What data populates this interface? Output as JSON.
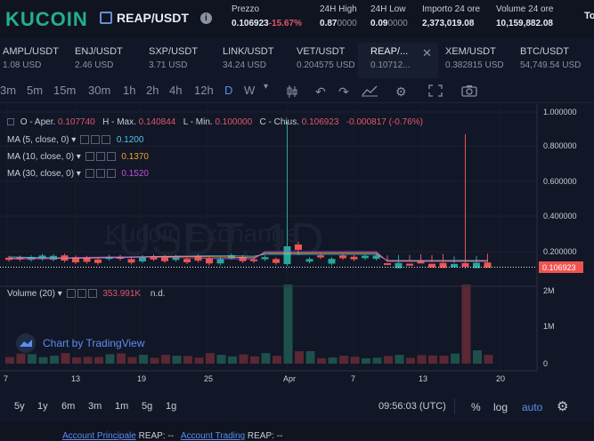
{
  "header": {
    "logo": "KUCOIN",
    "pair": "REAP/USDT",
    "price_label": "Prezzo",
    "price": "0.106923",
    "price_change": "-15.67%",
    "high_label": "24H High",
    "high": "0.87",
    "high_suffix": "0000",
    "low_label": "24H Low",
    "low": "0.09",
    "low_suffix": "0000",
    "amount_label": "Importo 24 ore",
    "amount": "2,373,019.08",
    "volume_label": "Volume 24 ore",
    "volume": "10,159,882.08",
    "extra": "To"
  },
  "tickers": [
    {
      "name": "AMPL/USDT",
      "price": "1.08 USD"
    },
    {
      "name": "ENJ/USDT",
      "price": "2.46 USD"
    },
    {
      "name": "SXP/USDT",
      "price": "3.71 USD"
    },
    {
      "name": "LINK/USDT",
      "price": "34.24 USD"
    },
    {
      "name": "VET/USDT",
      "price": "0.204575 USD"
    },
    {
      "name": "REAP/...",
      "price": "0.10712..."
    },
    {
      "name": "XEM/USDT",
      "price": "0.382815 USD"
    },
    {
      "name": "BTC/USDT",
      "price": "54,749.54 USD"
    }
  ],
  "toolbar": {
    "timeframes": [
      "3m",
      "5m",
      "15m",
      "30m",
      "1h",
      "2h",
      "4h",
      "12h",
      "D",
      "W"
    ],
    "selected": "D"
  },
  "legend": {
    "ohlc": {
      "open_label": "O - Aper.",
      "open": "0.107740",
      "high_label": "H - Max.",
      "high": "0.140844",
      "low_label": "L - Min.",
      "low": "0.100000",
      "close_label": "C - Chius.",
      "close": "0.106923",
      "change": "-0.000817 (-0.76%)"
    },
    "ma": [
      {
        "label": "MA (5, close, 0)",
        "value": "0.1200",
        "color": "#4fc3e8"
      },
      {
        "label": "MA (10, close, 0)",
        "value": "0.1370",
        "color": "#f0a030"
      },
      {
        "label": "MA (30, close, 0)",
        "value": "0.1520",
        "color": "#c04fe0"
      }
    ],
    "volume_label": "Volume (20)",
    "volume_value": "353.991K",
    "volume_na": "n.d."
  },
  "watermark": {
    "main": "-USDT, 1D",
    "sub": "Kucoin Exchange"
  },
  "tradingview": "Chart by TradingView",
  "price_axis": [
    "1.000000",
    "0.800000",
    "0.600000",
    "0.400000",
    "0.200000"
  ],
  "current_price_tag": "0.106923",
  "volume_axis": [
    "2M",
    "1M",
    "0"
  ],
  "time_axis": [
    "7",
    "13",
    "19",
    "25",
    "Apr",
    "7",
    "13",
    "20"
  ],
  "bottom": {
    "ranges": [
      "5y",
      "1y",
      "6m",
      "3m",
      "1m",
      "5g",
      "1g"
    ],
    "clock": "09:56:03 (UTC)",
    "percent": "%",
    "log": "log",
    "auto": "auto"
  },
  "account": {
    "principal": "Account Principale",
    "principal_val": "REAP: --",
    "trading": "Account Trading",
    "trading_val": "REAP: --"
  },
  "colors": {
    "up": "#26a69a",
    "down": "#ef5350",
    "accent": "#5b8def",
    "brand": "#23af91"
  }
}
